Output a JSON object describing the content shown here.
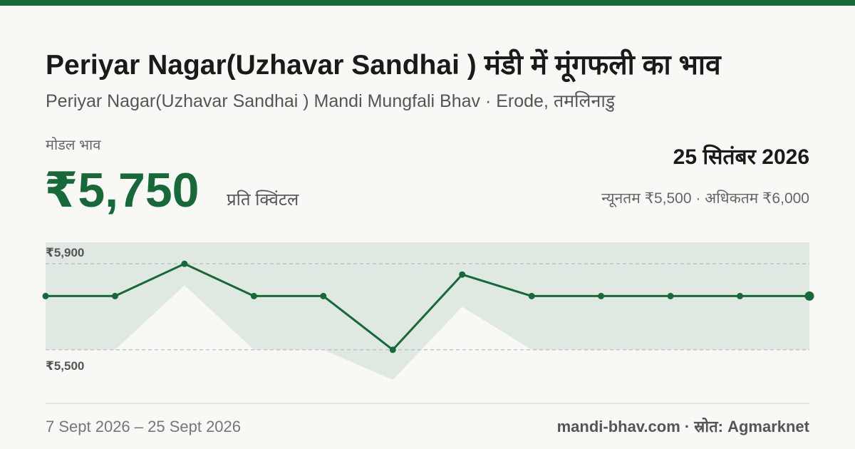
{
  "header": {
    "title": "Periyar Nagar(Uzhavar Sandhai ) मंडी में मूंगफली का भाव",
    "subtitle": "Periyar Nagar(Uzhavar Sandhai ) Mandi Mungfali Bhav · Erode, तमलिनाडु",
    "price_label": "मोडल भाव",
    "price": "₹5,750",
    "unit": "प्रति क्विंटल",
    "date": "25 सितंबर 2026",
    "range": "न्यूनतम ₹5,500 · अधिकतम ₹6,000"
  },
  "chart_data": {
    "type": "line",
    "values": [
      5750,
      5750,
      5900,
      5750,
      5750,
      5500,
      5850,
      5750,
      5750,
      5750,
      5750,
      5750
    ],
    "range_min": [
      5500,
      5500,
      5800,
      5500,
      5500,
      5360,
      5700,
      5500,
      5500,
      5500,
      5500,
      5500
    ],
    "range_max": [
      6000,
      6000,
      6000,
      6000,
      6000,
      6000,
      6000,
      6000,
      6000,
      6000,
      6000,
      6000
    ],
    "color": "#17693a",
    "band_color": "#dfe9e2",
    "ylim": [
      5360,
      6000
    ],
    "yticks": [
      {
        "value": 5500,
        "label": "₹5,500"
      },
      {
        "value": 5900,
        "label": "₹5,900"
      }
    ],
    "grid": true
  },
  "footer": {
    "period": "7 Sept 2026 – 25 Sept 2026",
    "source": "mandi-bhav.com · स्रोत: Agmarknet"
  }
}
